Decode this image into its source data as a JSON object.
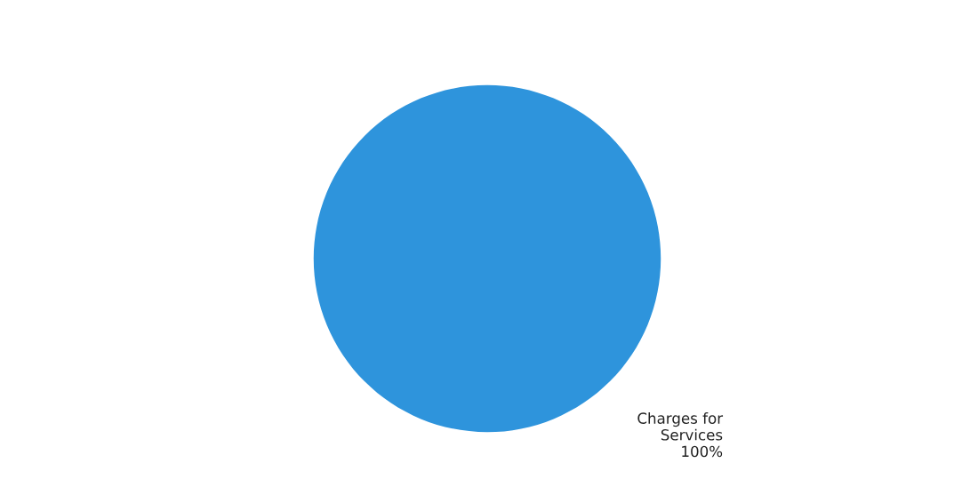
{
  "chart_data": {
    "type": "pie",
    "categories": [
      "Charges for\nServices"
    ],
    "values": [
      100
    ],
    "value_labels": [
      "100%"
    ],
    "colors": [
      "#2e94dc"
    ]
  }
}
